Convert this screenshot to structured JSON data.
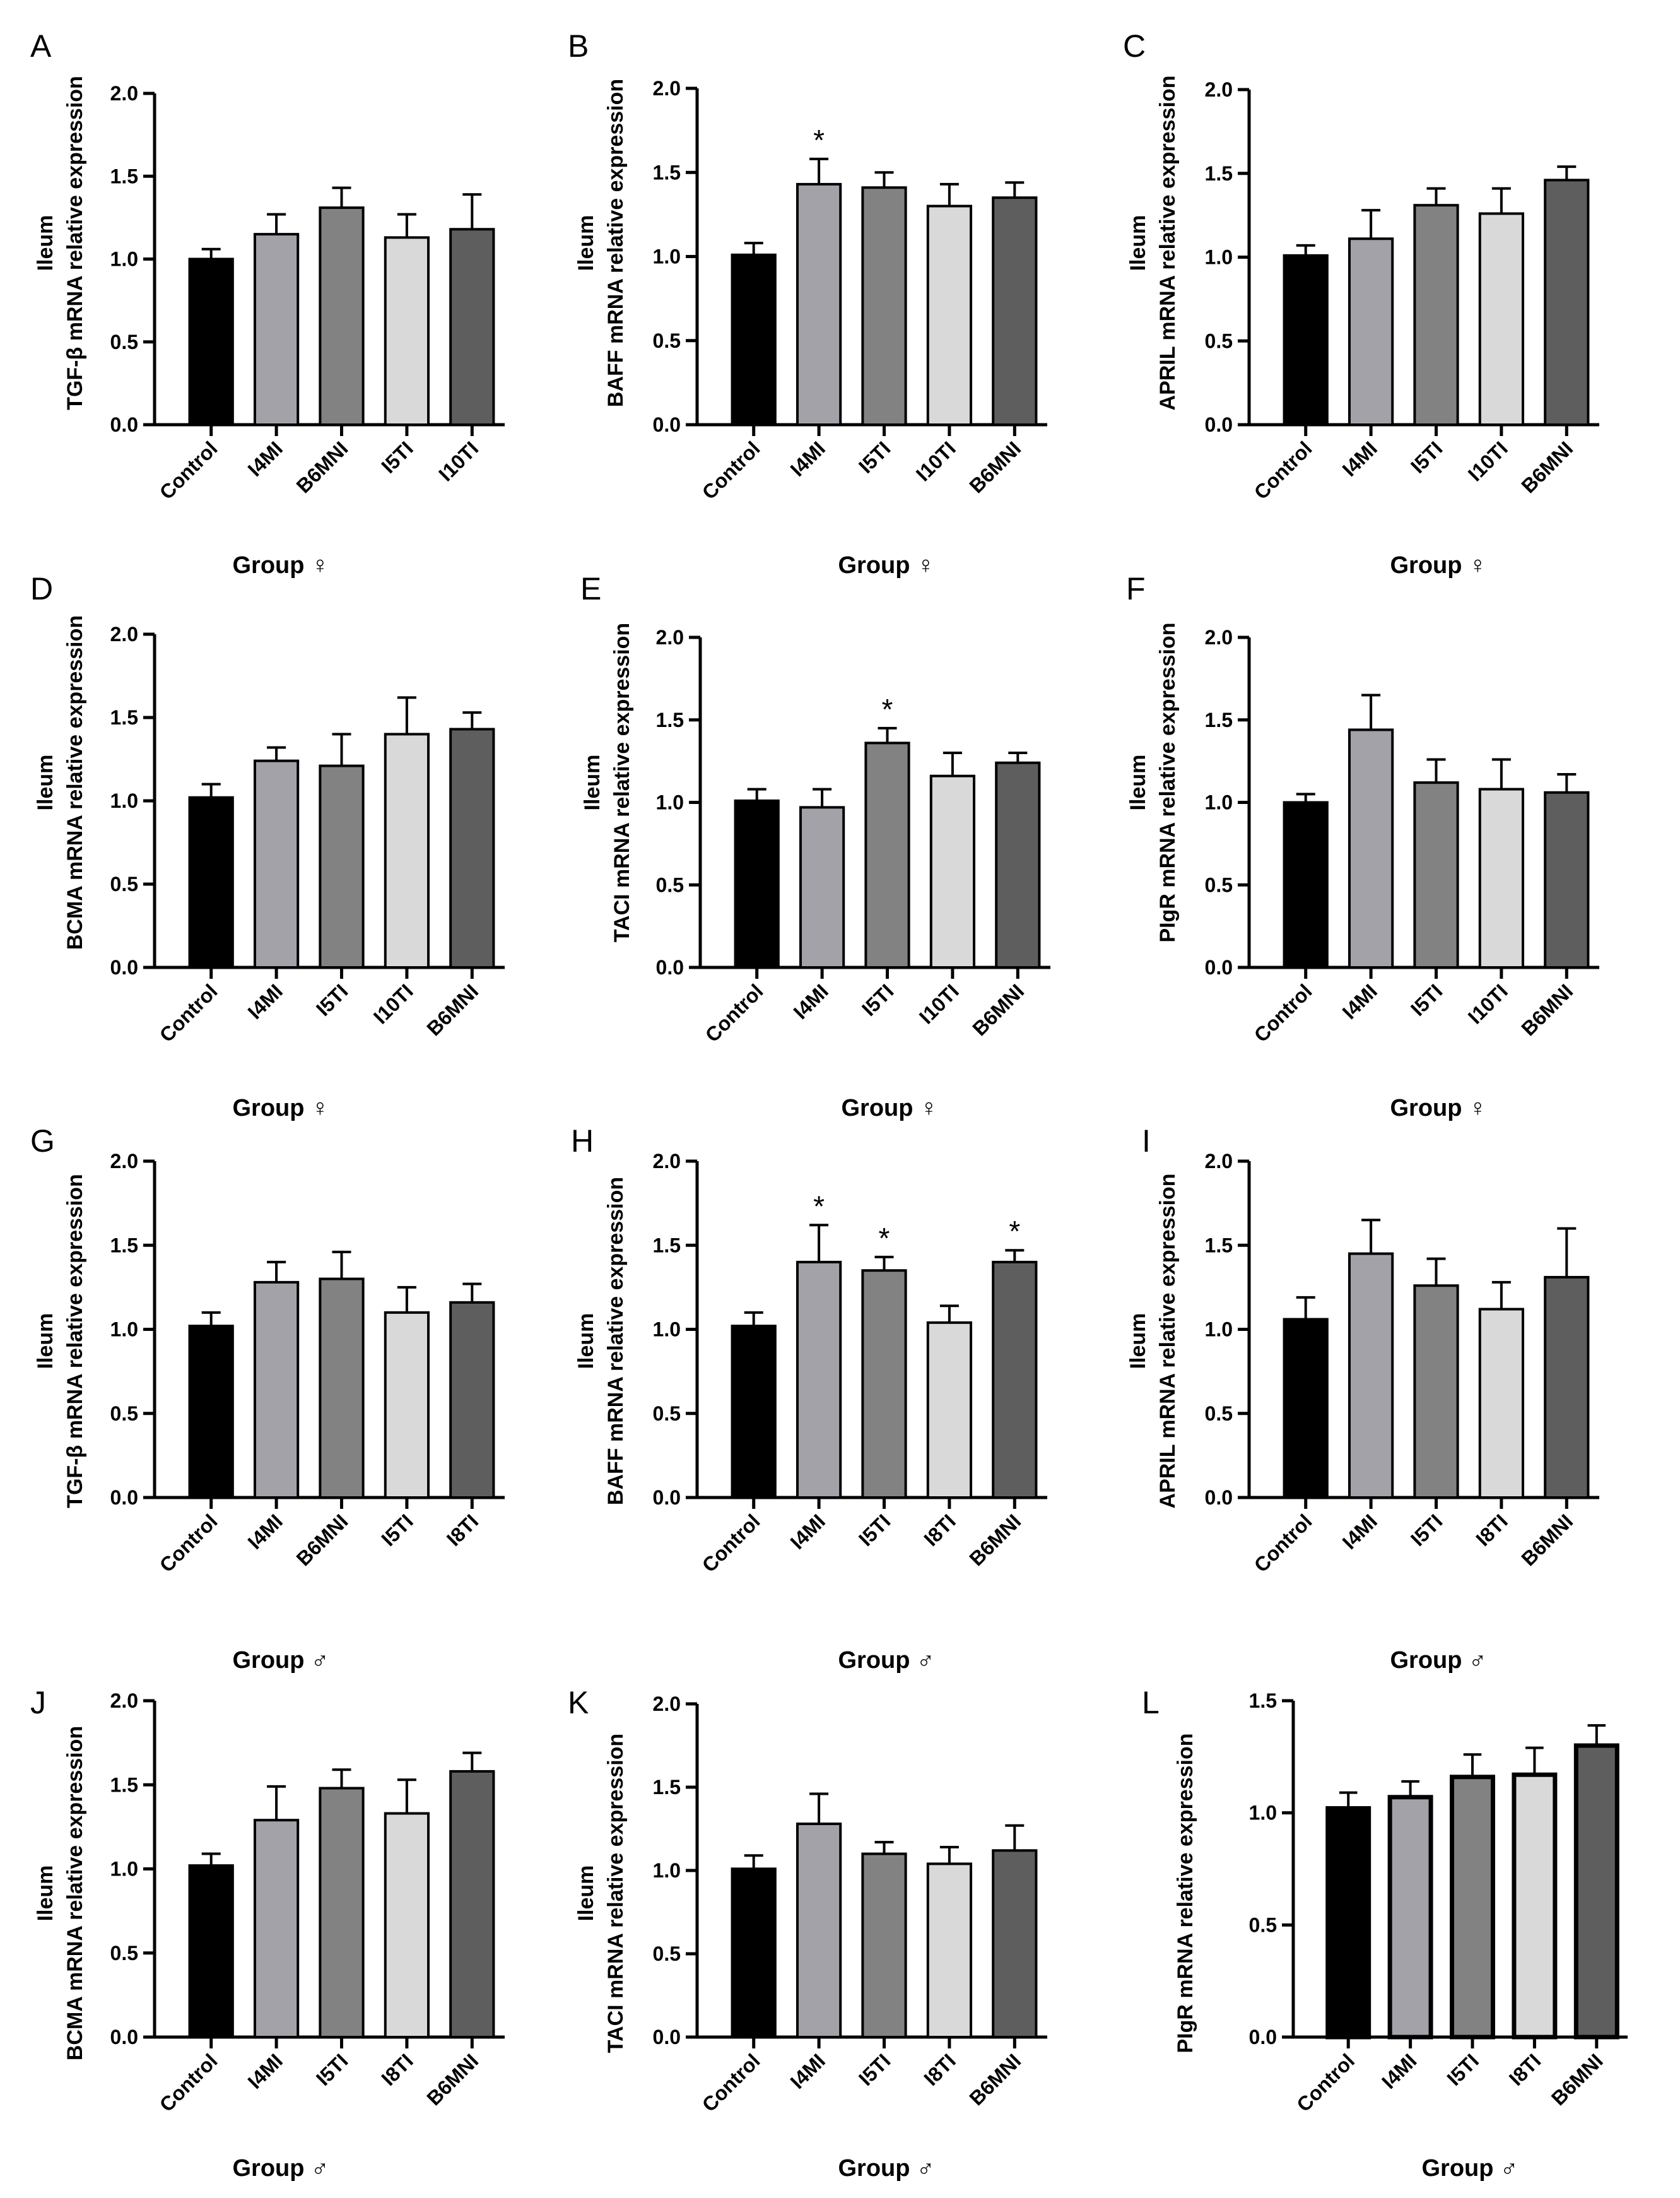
{
  "figure": {
    "panels": [
      {
        "letter": "A",
        "ylabel_top": "Ileum",
        "ylabel_bottom": "TGF-β mRNA relative expression",
        "xlabel": "Group ♀"
      },
      {
        "letter": "B",
        "ylabel_top": "Ileum",
        "ylabel_bottom": "BAFF mRNA relative expression",
        "xlabel": "Group ♀"
      },
      {
        "letter": "C",
        "ylabel_top": "Ileum",
        "ylabel_bottom": "APRIL mRNA relative expression",
        "xlabel": "Group ♀"
      },
      {
        "letter": "D",
        "ylabel_top": "Ileum",
        "ylabel_bottom": "BCMA mRNA relative expression",
        "xlabel": "Group ♀"
      },
      {
        "letter": "E",
        "ylabel_top": "Ileum",
        "ylabel_bottom": "TACI mRNA relative expression",
        "xlabel": "Group ♀"
      },
      {
        "letter": "F",
        "ylabel_top": "Ileum",
        "ylabel_bottom": "PIgR mRNA relative expression",
        "xlabel": "Group ♀"
      },
      {
        "letter": "G",
        "ylabel_top": "Ileum",
        "ylabel_bottom": "TGF-β mRNA relative expression",
        "xlabel": "Group ♂"
      },
      {
        "letter": "H",
        "ylabel_top": "Ileum",
        "ylabel_bottom": "BAFF mRNA relative expression",
        "xlabel": "Group ♂"
      },
      {
        "letter": "I",
        "ylabel_top": "Ileum",
        "ylabel_bottom": "APRIL mRNA relative expression",
        "xlabel": "Group ♂"
      },
      {
        "letter": "J",
        "ylabel_top": "Ileum",
        "ylabel_bottom": "BCMA mRNA relative expression",
        "xlabel": "Group ♂"
      },
      {
        "letter": "K",
        "ylabel_top": "Ileum",
        "ylabel_bottom": "TACI mRNA relative expression",
        "xlabel": "Group ♂"
      },
      {
        "letter": "L",
        "ylabel_top": "",
        "ylabel_bottom": "PIgR mRNA relative expression",
        "xlabel": "Group ♂"
      }
    ]
  },
  "colors": {
    "bar_fills": [
      "#000000",
      "#a2a2a8",
      "#828282",
      "#d9d9d9",
      "#5e5e5e"
    ],
    "axis": "#000000"
  },
  "chart_data": [
    {
      "panel": "A",
      "type": "bar",
      "title": "",
      "xlabel": "Group ♀",
      "ylabel": "Ileum TGF-β mRNA relative expression",
      "categories": [
        "Control",
        "I4MI",
        "B6MNI",
        "I5TI",
        "I10TI"
      ],
      "values": [
        1.0,
        1.15,
        1.31,
        1.13,
        1.18
      ],
      "errors": [
        0.06,
        0.12,
        0.12,
        0.14,
        0.21
      ],
      "significance": [
        "",
        "",
        "",
        "",
        ""
      ],
      "ylim": [
        0,
        2.0
      ],
      "yticks": [
        0.0,
        0.5,
        1.0,
        1.5,
        2.0
      ]
    },
    {
      "panel": "B",
      "type": "bar",
      "title": "",
      "xlabel": "Group ♀",
      "ylabel": "Ileum BAFF mRNA relative expression",
      "categories": [
        "Control",
        "I4MI",
        "I5TI",
        "I10TI",
        "B6MNI"
      ],
      "values": [
        1.01,
        1.43,
        1.41,
        1.3,
        1.35
      ],
      "errors": [
        0.07,
        0.15,
        0.09,
        0.13,
        0.09
      ],
      "significance": [
        "",
        "*",
        "",
        "",
        ""
      ],
      "ylim": [
        0,
        2.0
      ],
      "yticks": [
        0.0,
        0.5,
        1.0,
        1.5,
        2.0
      ]
    },
    {
      "panel": "C",
      "type": "bar",
      "title": "",
      "xlabel": "Group ♀",
      "ylabel": "Ileum APRIL mRNA relative expression",
      "categories": [
        "Control",
        "I4MI",
        "I5TI",
        "I10TI",
        "B6MNI"
      ],
      "values": [
        1.01,
        1.11,
        1.31,
        1.26,
        1.46
      ],
      "errors": [
        0.06,
        0.17,
        0.1,
        0.15,
        0.08
      ],
      "significance": [
        "",
        "",
        "",
        "",
        ""
      ],
      "ylim": [
        0,
        2.0
      ],
      "yticks": [
        0.0,
        0.5,
        1.0,
        1.5,
        2.0
      ]
    },
    {
      "panel": "D",
      "type": "bar",
      "title": "",
      "xlabel": "Group ♀",
      "ylabel": "Ileum BCMA mRNA relative expression",
      "categories": [
        "Control",
        "I4MI",
        "I5TI",
        "I10TI",
        "B6MNI"
      ],
      "values": [
        1.02,
        1.24,
        1.21,
        1.4,
        1.43
      ],
      "errors": [
        0.08,
        0.08,
        0.19,
        0.22,
        0.1
      ],
      "significance": [
        "",
        "",
        "",
        "",
        ""
      ],
      "ylim": [
        0,
        2.0
      ],
      "yticks": [
        0.0,
        0.5,
        1.0,
        1.5,
        2.0
      ]
    },
    {
      "panel": "E",
      "type": "bar",
      "title": "",
      "xlabel": "Group ♀",
      "ylabel": "Ileum TACI mRNA relative expression",
      "categories": [
        "Control",
        "I4MI",
        "I5TI",
        "I10TI",
        "B6MNI"
      ],
      "values": [
        1.01,
        0.97,
        1.36,
        1.16,
        1.24
      ],
      "errors": [
        0.07,
        0.11,
        0.09,
        0.14,
        0.06
      ],
      "significance": [
        "",
        "",
        "*",
        "",
        ""
      ],
      "ylim": [
        0,
        2.0
      ],
      "yticks": [
        0.0,
        0.5,
        1.0,
        1.5,
        2.0
      ]
    },
    {
      "panel": "F",
      "type": "bar",
      "title": "",
      "xlabel": "Group ♀",
      "ylabel": "Ileum PIgR mRNA relative expression",
      "categories": [
        "Control",
        "I4MI",
        "I5TI",
        "I10TI",
        "B6MNI"
      ],
      "values": [
        1.0,
        1.44,
        1.12,
        1.08,
        1.06
      ],
      "errors": [
        0.05,
        0.21,
        0.14,
        0.18,
        0.11
      ],
      "significance": [
        "",
        "",
        "",
        "",
        ""
      ],
      "ylim": [
        0,
        2.0
      ],
      "yticks": [
        0.0,
        0.5,
        1.0,
        1.5,
        2.0
      ]
    },
    {
      "panel": "G",
      "type": "bar",
      "title": "",
      "xlabel": "Group ♂",
      "ylabel": "Ileum TGF-β mRNA relative expression",
      "categories": [
        "Control",
        "I4MI",
        "B6MNI",
        "I5TI",
        "I8TI"
      ],
      "values": [
        1.02,
        1.28,
        1.3,
        1.1,
        1.16
      ],
      "errors": [
        0.08,
        0.12,
        0.16,
        0.15,
        0.11
      ],
      "significance": [
        "",
        "",
        "",
        "",
        ""
      ],
      "ylim": [
        0,
        2.0
      ],
      "yticks": [
        0.0,
        0.5,
        1.0,
        1.5,
        2.0
      ]
    },
    {
      "panel": "H",
      "type": "bar",
      "title": "",
      "xlabel": "Group ♂",
      "ylabel": "Ileum BAFF mRNA relative expression",
      "categories": [
        "Control",
        "I4MI",
        "I5TI",
        "I8TI",
        "B6MNI"
      ],
      "values": [
        1.02,
        1.4,
        1.35,
        1.04,
        1.4
      ],
      "errors": [
        0.08,
        0.22,
        0.08,
        0.1,
        0.07
      ],
      "significance": [
        "",
        "*",
        "*",
        "",
        "*"
      ],
      "ylim": [
        0,
        2.0
      ],
      "yticks": [
        0.0,
        0.5,
        1.0,
        1.5,
        2.0
      ]
    },
    {
      "panel": "I",
      "type": "bar",
      "title": "",
      "xlabel": "Group ♂",
      "ylabel": "Ileum APRIL mRNA relative expression",
      "categories": [
        "Control",
        "I4MI",
        "I5TI",
        "I8TI",
        "B6MNI"
      ],
      "values": [
        1.06,
        1.45,
        1.26,
        1.12,
        1.31
      ],
      "errors": [
        0.13,
        0.2,
        0.16,
        0.16,
        0.29
      ],
      "significance": [
        "",
        "",
        "",
        "",
        ""
      ],
      "ylim": [
        0,
        2.0
      ],
      "yticks": [
        0.0,
        0.5,
        1.0,
        1.5,
        2.0
      ]
    },
    {
      "panel": "J",
      "type": "bar",
      "title": "",
      "xlabel": "Group ♂",
      "ylabel": "Ileum BCMA mRNA relative expression",
      "categories": [
        "Control",
        "I4MI",
        "I5TI",
        "I8TI",
        "B6MNI"
      ],
      "values": [
        1.02,
        1.29,
        1.48,
        1.33,
        1.58
      ],
      "errors": [
        0.07,
        0.2,
        0.11,
        0.2,
        0.11
      ],
      "significance": [
        "",
        "",
        "",
        "",
        ""
      ],
      "ylim": [
        0,
        2.0
      ],
      "yticks": [
        0.0,
        0.5,
        1.0,
        1.5,
        2.0
      ]
    },
    {
      "panel": "K",
      "type": "bar",
      "title": "",
      "xlabel": "Group ♂",
      "ylabel": "Ileum TACI mRNA relative expression",
      "categories": [
        "Control",
        "I4MI",
        "I5TI",
        "I8TI",
        "B6MNI"
      ],
      "values": [
        1.01,
        1.28,
        1.1,
        1.04,
        1.12
      ],
      "errors": [
        0.08,
        0.18,
        0.07,
        0.1,
        0.15
      ],
      "significance": [
        "",
        "",
        "",
        "",
        ""
      ],
      "ylim": [
        0,
        2.0
      ],
      "yticks": [
        0.0,
        0.5,
        1.0,
        1.5,
        2.0
      ]
    },
    {
      "panel": "L",
      "type": "bar",
      "title": "",
      "xlabel": "Group ♂",
      "ylabel": "PIgR mRNA relative expression",
      "categories": [
        "Control",
        "I4MI",
        "I5TI",
        "I8TI",
        "B6MNI"
      ],
      "values": [
        1.02,
        1.07,
        1.16,
        1.17,
        1.3
      ],
      "errors": [
        0.07,
        0.07,
        0.1,
        0.12,
        0.09
      ],
      "significance": [
        "",
        "",
        "",
        "",
        ""
      ],
      "ylim": [
        0,
        1.5
      ],
      "yticks": [
        0.0,
        0.5,
        1.0,
        1.5
      ]
    }
  ]
}
